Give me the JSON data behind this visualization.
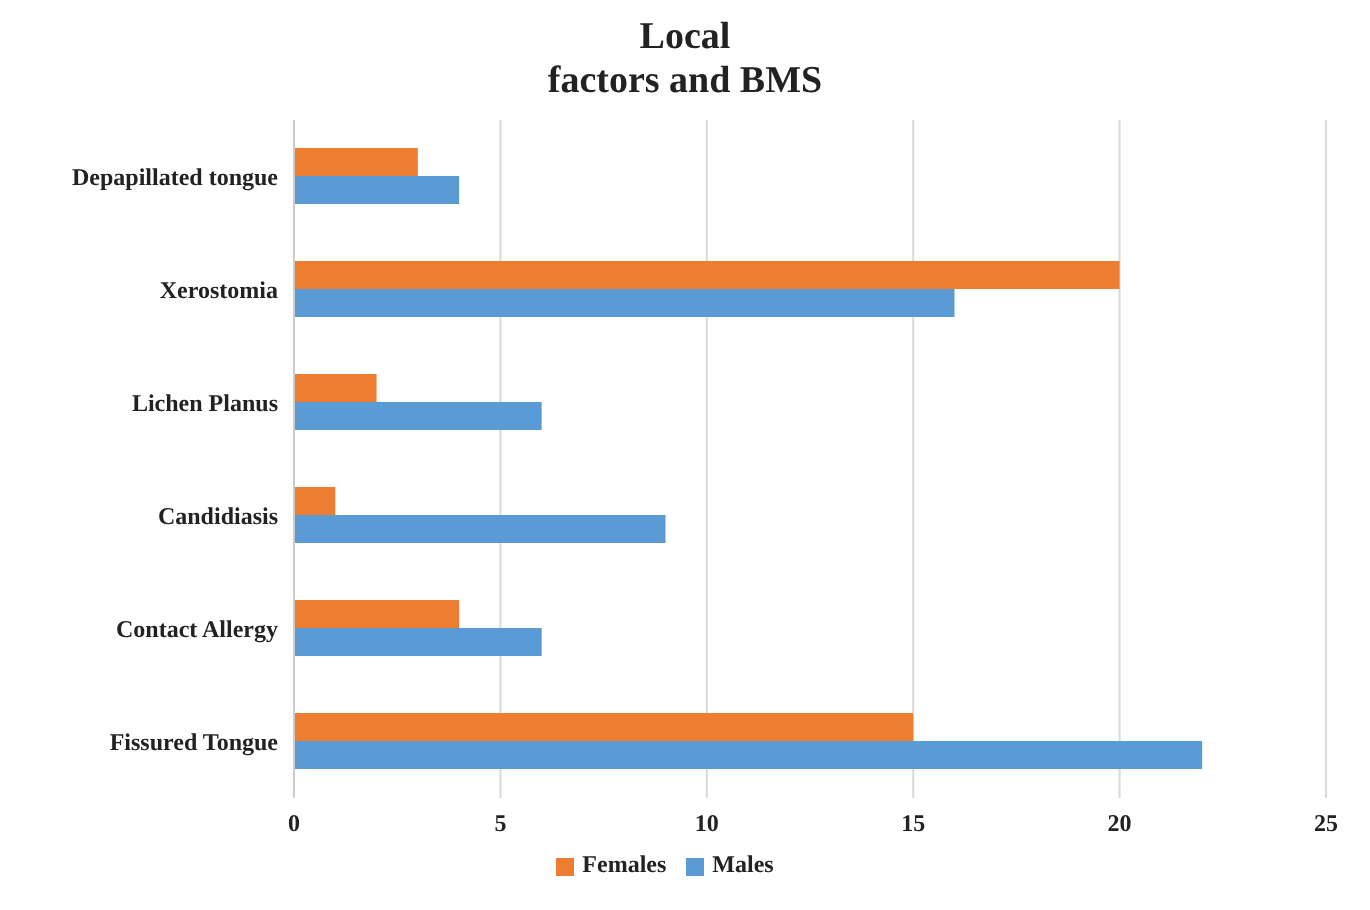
{
  "chart_data": {
    "type": "bar",
    "orientation": "horizontal",
    "title": "Local\nfactors and BMS",
    "categories": [
      "Depapillated tongue",
      "Xerostomia",
      "Lichen Planus",
      "Candidiasis",
      "Contact Allergy",
      "Fissured Tongue"
    ],
    "series": [
      {
        "name": "Females",
        "color": "#ed7d31",
        "values": [
          3,
          20,
          2,
          1,
          4,
          15
        ]
      },
      {
        "name": "Males",
        "color": "#5b9bd5",
        "values": [
          4,
          16,
          6,
          9,
          6,
          22
        ]
      }
    ],
    "xlim": [
      0,
      25
    ],
    "xticks": [
      0,
      5,
      10,
      15,
      20,
      25
    ],
    "grid": "x",
    "legend": "bottom"
  }
}
